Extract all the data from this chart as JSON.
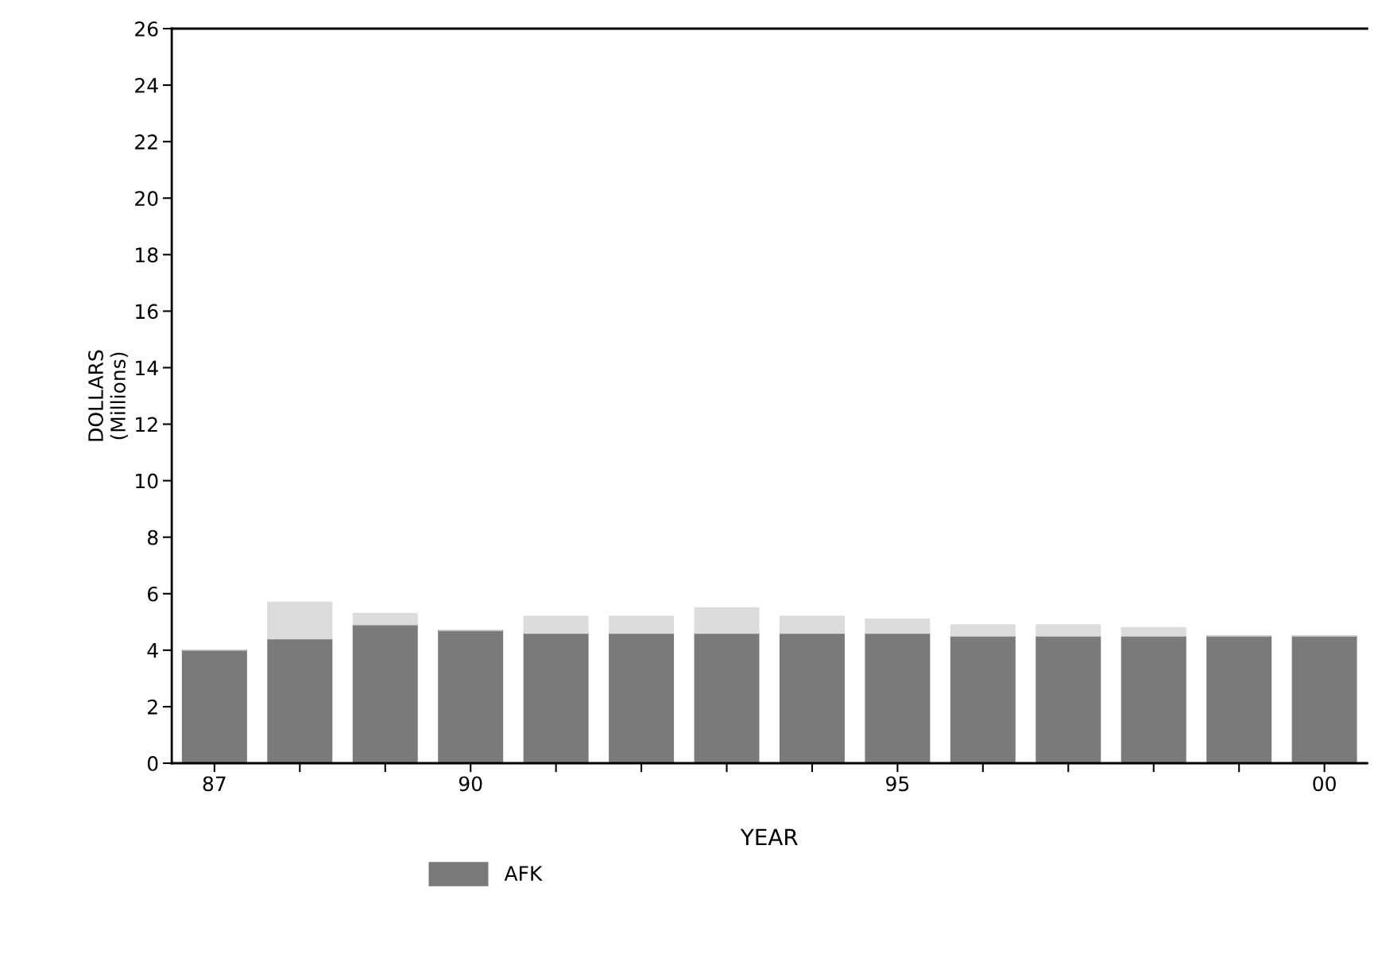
{
  "chart_data": {
    "type": "bar",
    "stacked": true,
    "xlabel": "YEAR",
    "ylabel": "DOLLARS\n(Millions)",
    "categories": [
      "87",
      null,
      null,
      "90",
      null,
      null,
      null,
      null,
      "95",
      null,
      null,
      null,
      null,
      "00"
    ],
    "series": [
      {
        "name": "AFK",
        "color": "#7a7a7a",
        "values": [
          4.0,
          4.4,
          4.9,
          4.7,
          4.6,
          4.6,
          4.6,
          4.6,
          4.6,
          4.5,
          4.5,
          4.5,
          4.5,
          4.5
        ]
      },
      {
        "color": "#dcdcdc",
        "values": [
          0,
          1.3,
          0.4,
          0,
          0.6,
          0.6,
          0.9,
          0.6,
          0.5,
          0.4,
          0.4,
          0.3,
          0,
          0
        ]
      }
    ],
    "ylim": [
      0,
      26
    ],
    "yticks": [
      0,
      2,
      4,
      6,
      8,
      10,
      12,
      14,
      16,
      18,
      20,
      22,
      24,
      26
    ],
    "grid": false,
    "legend": "bottom left"
  }
}
